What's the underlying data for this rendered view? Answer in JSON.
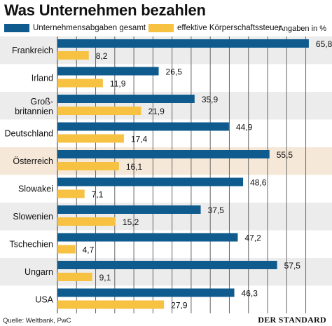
{
  "chart_data": {
    "type": "bar",
    "orientation": "horizontal",
    "title": "Was Unternehmen bezahlen",
    "unit_note": "Angaben in %",
    "categories": [
      "Frankreich",
      "Irland",
      "Groß-\nbritannien",
      "Deutschland",
      "Österreich",
      "Slowakei",
      "Slowenien",
      "Tschechien",
      "Ungarn",
      "USA"
    ],
    "highlight_category": "Österreich",
    "series": [
      {
        "name": "Unternehmensabgaben gesamt",
        "color": "#0f5b8e",
        "values": [
          65.8,
          26.5,
          35.9,
          44.9,
          55.5,
          48.6,
          37.5,
          47.2,
          57.5,
          46.3
        ],
        "labels": [
          "65,8",
          "26,5",
          "35,9",
          "44,9",
          "55,5",
          "48,6",
          "37,5",
          "47,2",
          "57,5",
          "46,3"
        ]
      },
      {
        "name": "effektive Körperschaftssteuer",
        "color": "#f7c242",
        "values": [
          8.2,
          11.9,
          21.9,
          17.4,
          16.1,
          7.1,
          15.2,
          4.7,
          9.1,
          27.9
        ],
        "labels": [
          "8,2",
          "11,9",
          "21,9",
          "17,4",
          "16,1",
          "7,1",
          "15,2",
          "4,7",
          "9,1",
          "27,9"
        ]
      }
    ],
    "xlim": [
      0,
      66
    ],
    "grid": true,
    "legend_position": "top"
  },
  "legend": {
    "series1_label": "Unternehmensabgaben gesamt",
    "series2_label": "effektive Körperschaftssteuer",
    "series1_color": "#0f5b8e",
    "series2_color": "#f7c242"
  },
  "footer": {
    "source": "Quelle: Weltbank, PwC",
    "brand": "DER STANDARD"
  },
  "colors": {
    "row_alt": "#ececec",
    "row_highlight": "#f6e8d8",
    "grid": "#666666"
  }
}
